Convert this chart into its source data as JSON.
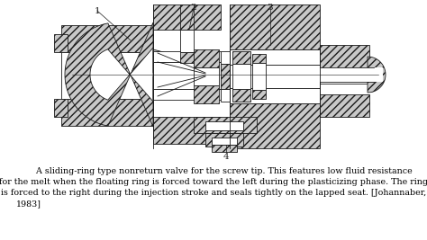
{
  "caption_line1": "        A sliding-ring type nonreturn valve for the screw tip. This features low fluid resistance",
  "caption_line2": "for the melt when the floating ring is forced toward the left during the plasticizing phase. The ring",
  "caption_line3": "is forced to the right during the injection stroke and seals tightly on the lapped seat. [Johannaber,",
  "caption_line4": "1983]",
  "label1": "1",
  "label2": "2",
  "label3": "3",
  "label4": "4",
  "bg_color": "#ffffff",
  "line_color": "#1a1a1a",
  "hatch_fc": "#c8c8c8",
  "fig_width": 4.74,
  "fig_height": 2.67,
  "dpi": 100
}
